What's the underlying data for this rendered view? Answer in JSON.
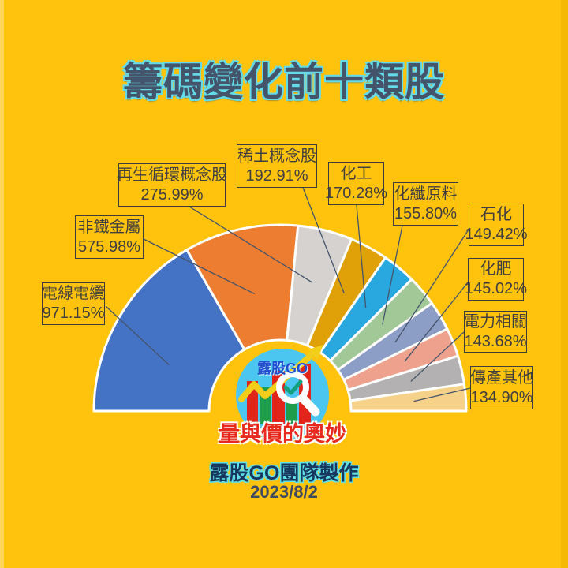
{
  "page": {
    "title": "籌碼變化前十類股",
    "footer_team": "露股GO團隊製作",
    "footer_date": "2023/8/2"
  },
  "logo": {
    "brand": "露股GO",
    "slogan": "量與價的奧妙",
    "circle_color": "#4AC6F0",
    "brand_color": "#2150D0",
    "slogan_color": "#E62B1E",
    "arrow_color": "#F2CE1B",
    "bar_colors": [
      "#E1251B",
      "#1E9E4C"
    ],
    "magnifier_color": "#FFFFFF",
    "check_color": "#12A07E"
  },
  "colors": {
    "background": "#FFC30D",
    "title_text": "#44546A",
    "title_outline": "#63DBE9",
    "label_text": "#3F3F3F",
    "label_border": "#3D3D3D",
    "leader_line": "#44546A",
    "slice_stroke": "#FFFFFF"
  },
  "chart_data": {
    "type": "pie",
    "shape": "half-donut",
    "title": "籌碼變化前十類股",
    "unit": "%",
    "legend_position": "callout-labels",
    "angle_span_deg": 180,
    "points": [
      {
        "label": "電線電纜",
        "value": 971.15,
        "display": "971.15%",
        "color": "#4472C4"
      },
      {
        "label": "非鐵金屬",
        "value": 575.98,
        "display": "575.98%",
        "color": "#ED7D31"
      },
      {
        "label": "再生循環概念股",
        "value": 275.99,
        "display": "275.99%",
        "color": "#D5D2D0"
      },
      {
        "label": "稀土概念股",
        "value": 192.91,
        "display": "192.91%",
        "color": "#DFA008"
      },
      {
        "label": "化工",
        "value": 170.28,
        "display": "170.28%",
        "color": "#29A8E0"
      },
      {
        "label": "化纖原料",
        "value": 155.8,
        "display": "155.80%",
        "color": "#A3C897"
      },
      {
        "label": "石化",
        "value": 149.42,
        "display": "149.42%",
        "color": "#8C9DC6"
      },
      {
        "label": "化肥",
        "value": 145.02,
        "display": "145.02%",
        "color": "#EEA28D"
      },
      {
        "label": "電力相關",
        "value": 143.68,
        "display": "143.68%",
        "color": "#B3B1B1"
      },
      {
        "label": "傳產其他",
        "value": 134.9,
        "display": "134.90%",
        "color": "#F6D189"
      }
    ]
  }
}
